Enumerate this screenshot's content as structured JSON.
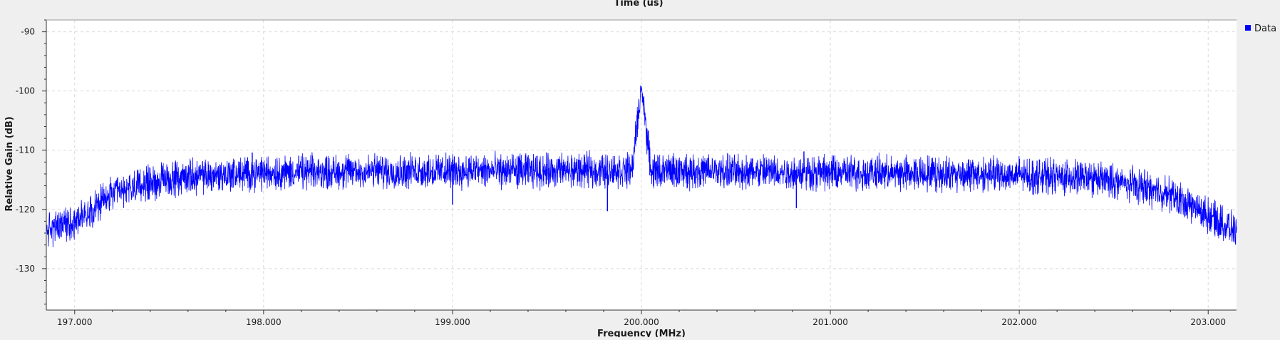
{
  "chart_data": {
    "type": "line",
    "top_axis_title": "Time (us)",
    "xlabel": "Frequency (MHz)",
    "ylabel": "Relative Gain (dB)",
    "xlim": [
      196.85,
      203.15
    ],
    "ylim": [
      -137,
      -88
    ],
    "x_ticks": [
      197.0,
      198.0,
      199.0,
      200.0,
      201.0,
      202.0,
      203.0
    ],
    "x_tick_labels": [
      "197.000",
      "198.000",
      "199.000",
      "200.000",
      "201.000",
      "202.000",
      "203.000"
    ],
    "y_ticks": [
      -90,
      -100,
      -110,
      -120,
      -130
    ],
    "y_tick_labels": [
      "-90",
      "-100",
      "-110",
      "-120",
      "-130"
    ],
    "grid": true,
    "legend_position": "top-right",
    "series": [
      {
        "name": "Data",
        "color": "#0000ff",
        "x": [
          196.85,
          197.0,
          197.2,
          197.4,
          197.6,
          198.0,
          198.5,
          199.0,
          199.5,
          199.95,
          200.0,
          200.05,
          200.5,
          201.0,
          201.5,
          202.0,
          202.4,
          202.6,
          202.8,
          203.0,
          203.15
        ],
        "y": [
          -123.5,
          -122.0,
          -117.5,
          -115.5,
          -114.5,
          -113.8,
          -113.6,
          -113.5,
          -113.5,
          -113.4,
          -99.2,
          -113.5,
          -113.6,
          -113.8,
          -113.9,
          -114.2,
          -114.8,
          -115.8,
          -117.5,
          -121.0,
          -123.8
        ],
        "noise_amplitude_db": 2.5,
        "extreme_dips": [
          {
            "x": 199.82,
            "y": -120.3
          },
          {
            "x": 200.82,
            "y": -119.8
          },
          {
            "x": 199.0,
            "y": -119.2
          },
          {
            "x": 202.78,
            "y": -119.5
          }
        ],
        "extreme_peaks": [
          {
            "x": 200.0,
            "y": -99.2
          },
          {
            "x": 197.94,
            "y": -110.4
          },
          {
            "x": 200.86,
            "y": -110.2
          }
        ]
      }
    ]
  }
}
